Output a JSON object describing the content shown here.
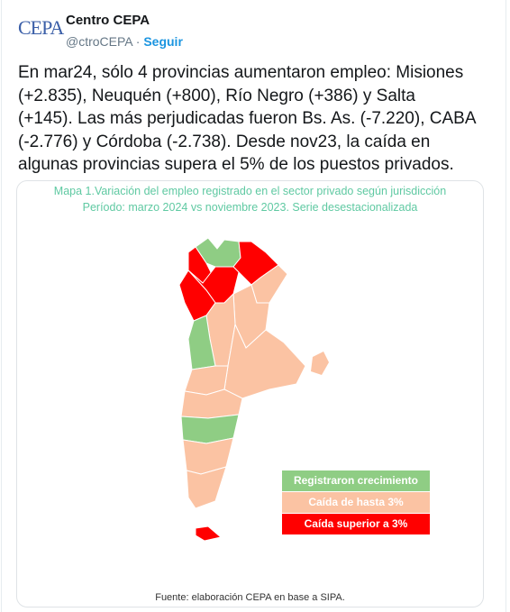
{
  "header": {
    "avatar_text": "CEPA",
    "name": "Centro CEPA",
    "handle": "@ctroCEPA",
    "separator": "·",
    "follow": "Seguir"
  },
  "tweet": {
    "lines": [
      "En mar24, sólo 4 provincias aumentaron empleo: Misiones",
      "(+2.835), Neuquén (+800), Río Negro (+386) y Salta",
      "(+145). Las más perjudicadas fueron Bs. As. (-7.220), CABA",
      "(-2.776) y Córdoba (-2.738). Desde nov23, la caída en",
      "algunas provincias supera el 5% de los puestos privados."
    ]
  },
  "image": {
    "title_lines": [
      "Mapa 1.Variación del empleo registrado en el sector privado según jurisdicción",
      "Período: marzo 2024 vs noviembre 2023. Serie desestacionalizada"
    ],
    "legend": [
      {
        "label": "Registraron crecimiento",
        "color": "#8fcd84"
      },
      {
        "label": "Caída de hasta 3%",
        "color": "#fbc3a3"
      },
      {
        "label": "Caída superior a 3%",
        "color": "#ff0000"
      }
    ],
    "source": "Fuente: elaboración CEPA en base a SIPA."
  }
}
